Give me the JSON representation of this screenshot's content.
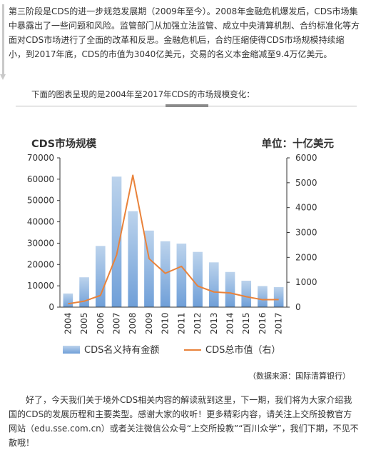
{
  "intro": {
    "text": "第三阶段是CDS的进一步规范发展期（2009年至今）。2008年金融危机爆发后，CDS市场集中暴露出了一些问题和风险。监管部门从加强立法监管、成立中央清算机制、合约标准化等方面对CDS市场进行了全面的改革和反思。金融危机后，合约压缩使得CDS市场规模持续缩小，到2017年底，CDS的市值为3040亿美元，交易的名义本金缩减至9.4万亿美元。"
  },
  "caption": "下面的图表呈现的是2004年至2017年CDS的市场规模变化：",
  "source": "（数据来源：国际清算银行）",
  "outro": "好了，今天我们关于境外CDS相关内容的解读就到这里，下一期，我们将为大家介绍我国的CDS的发展历程和主要类型。感谢大家的收听！更多精彩内容，请关注上交所投教官方网站（edu.sse.com.cn）或者关注微信公众号“上交所投教”“百川众学”，我们下期，不见不散哦！",
  "colors": {
    "bar_top": "#bcd3ec",
    "bar_bottom": "#6f9fd8",
    "line": "#e9823a",
    "axis": "#333333",
    "text": "#333333"
  },
  "chart_data": {
    "type": "bar",
    "title": "CDS市场规模",
    "unit_label": "单位：十亿美元",
    "categories": [
      "2004",
      "2005",
      "2006",
      "2007",
      "2008",
      "2009",
      "2010",
      "2011",
      "2012",
      "2013",
      "2014",
      "2015",
      "2016",
      "2017"
    ],
    "series": [
      {
        "name": "CDS名义持有金额",
        "type": "bar",
        "axis": "left",
        "values": [
          6400,
          14000,
          28700,
          61200,
          45000,
          35900,
          30900,
          29800,
          25900,
          21000,
          16500,
          12400,
          9900,
          9400
        ]
      },
      {
        "name": "CDS总市值（右）",
        "type": "line",
        "axis": "right",
        "values": [
          135,
          240,
          470,
          2100,
          5300,
          1950,
          1360,
          1640,
          850,
          610,
          570,
          420,
          300,
          304
        ]
      }
    ],
    "y_left": {
      "min": 0,
      "max": 70000,
      "ticks": [
        "0",
        "10000",
        "20000",
        "30000",
        "40000",
        "50000",
        "60000",
        "70000"
      ]
    },
    "y_right": {
      "min": 0,
      "max": 6000,
      "ticks": [
        "0",
        "1000",
        "2000",
        "3000",
        "4000",
        "5000",
        "6000"
      ]
    },
    "grid": false,
    "legend_position": "bottom"
  }
}
